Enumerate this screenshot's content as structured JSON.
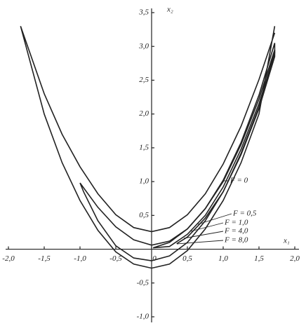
{
  "chart_data": {
    "type": "line",
    "x_label": "x₁",
    "y_label": "x₂",
    "xlim": [
      -2,
      2
    ],
    "ylim": [
      -1,
      3.5
    ],
    "xticks": [
      {
        "value": -2,
        "label": "-2,0"
      },
      {
        "value": -1.5,
        "label": "-1,5"
      },
      {
        "value": -1,
        "label": "-1,0"
      },
      {
        "value": -0.5,
        "label": "-0,5"
      },
      0,
      {
        "value": 0.5,
        "label": "0,5"
      },
      {
        "value": 1,
        "label": "1,0"
      },
      {
        "value": 1.5,
        "label": "1,5"
      },
      {
        "value": 2,
        "label": "2,0"
      }
    ],
    "yticks": [
      {
        "value": -1,
        "label": "-1,0"
      },
      {
        "value": -0.5,
        "label": "-0,5"
      },
      {
        "value": 0.5,
        "label": "0,5"
      },
      {
        "value": 1,
        "label": "1,0"
      },
      {
        "value": 1.5,
        "label": "1,5"
      },
      {
        "value": 2,
        "label": "2,0"
      },
      {
        "value": 2.5,
        "label": "2,5"
      },
      {
        "value": 3,
        "label": "3,0"
      },
      {
        "value": 3.5,
        "label": "3,5"
      }
    ],
    "annotations": [
      "F = 0",
      "F = 0,5",
      "F = 1,0",
      "F = 4,0",
      "F = 8,0"
    ],
    "series": [
      {
        "color": "#222222",
        "x": [
          1.72,
          1.5,
          1.25,
          1.0,
          0.75,
          0.5,
          0.25,
          0,
          -0.25,
          -0.5,
          -0.75,
          -1.0,
          -1.25,
          -1.5,
          -1.83,
          -1.5,
          -1.25,
          -1.0,
          -0.75,
          -0.5,
          -0.25,
          0,
          0.25,
          0.5,
          0.75,
          1.0,
          1.25,
          1.5,
          1.72
        ],
        "values": [
          3.2,
          2.51,
          1.82,
          1.26,
          0.82,
          0.51,
          0.32,
          0.26,
          0.32,
          0.51,
          0.82,
          1.22,
          1.7,
          2.3,
          3.3,
          2.0,
          1.28,
          0.72,
          0.28,
          -0.04,
          -0.22,
          -0.28,
          -0.22,
          -0.02,
          0.3,
          0.72,
          1.28,
          2.0,
          3.3
        ]
      },
      {
        "color": "#222222",
        "x": [
          -1.0,
          -0.75,
          -0.5,
          -0.25,
          0,
          0.25,
          0.5,
          0.75,
          1.0,
          1.25,
          1.5,
          1.72,
          1.72,
          1.5,
          1.25,
          1.0,
          0.75,
          0.5,
          0.25,
          0,
          -0.25,
          -0.5,
          -0.75,
          -0.95,
          -1.0
        ],
        "values": [
          0.98,
          0.62,
          0.33,
          0.14,
          0.06,
          0.12,
          0.3,
          0.6,
          1.02,
          1.58,
          2.28,
          3.05,
          2.85,
          2.08,
          1.4,
          0.85,
          0.42,
          0.1,
          -0.1,
          -0.17,
          -0.13,
          0.05,
          0.42,
          0.85,
          0.98
        ]
      },
      {
        "color": "#222222",
        "x": [
          0.02,
          0.25,
          0.5,
          0.75,
          1.0,
          1.25,
          1.5,
          1.72,
          1.72,
          1.5,
          1.25,
          1.0,
          0.75,
          0.5,
          0.25,
          0.02
        ],
        "values": [
          0.02,
          0.1,
          0.3,
          0.6,
          1.0,
          1.55,
          2.22,
          2.95,
          2.9,
          2.15,
          1.48,
          0.92,
          0.5,
          0.22,
          0.04,
          0.02
        ]
      },
      {
        "color": "#222222",
        "x": [
          0.35,
          0.5,
          0.75,
          1.0,
          1.25,
          1.5,
          1.72
        ],
        "values": [
          0.08,
          0.18,
          0.46,
          0.85,
          1.42,
          2.1,
          2.88
        ]
      }
    ]
  }
}
